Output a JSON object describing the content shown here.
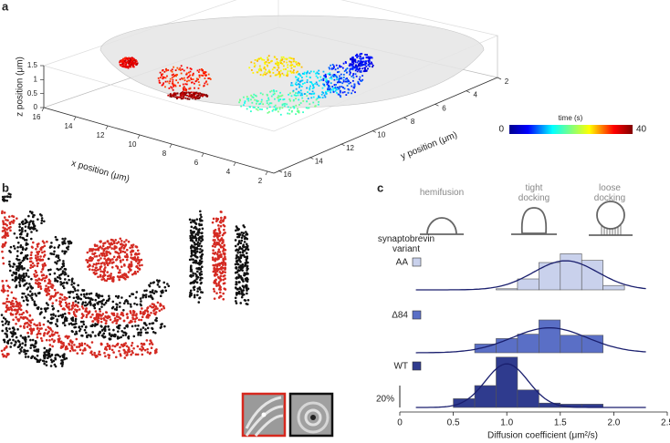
{
  "panel_a": {
    "label": "a",
    "z_label": "z position (μm)",
    "x_label": "x position (μm)",
    "y_label": "y position (μm)",
    "z_ticks": [
      0,
      0.5,
      1,
      1.5
    ],
    "x_ticks": [
      16,
      14,
      12,
      10,
      8,
      6,
      4,
      2
    ],
    "y_ticks": [
      2,
      4,
      6,
      8,
      10,
      12,
      14,
      16
    ],
    "colorbar": {
      "title": "time (s)",
      "min": 0,
      "max": 40
    }
  },
  "panel_b": {
    "label": "b"
  },
  "panel_c": {
    "label": "c",
    "schematics": [
      "hemifusion",
      "tight docking",
      "loose docking"
    ],
    "legend_title": "synaptobrevin variant"
  },
  "chart_data": {
    "type": "histogram",
    "x_label": "Diffusion coefficient (μm²/s)",
    "xlim": [
      0,
      2.5
    ],
    "xticks": [
      0,
      0.5,
      {
        "value": 1,
        "label": "1.0"
      },
      1.5,
      {
        "value": 2,
        "label": "2.0"
      },
      {
        "value": 2.5,
        "label": "2.5"
      }
    ],
    "scale_bar": {
      "value": 20,
      "label": "20%"
    },
    "series": [
      {
        "name": "AA",
        "color": "#c9d1ec",
        "bins": [
          0.9,
          1.1,
          1.3,
          1.5,
          1.7,
          1.9,
          2.1
        ],
        "values": [
          1,
          10,
          25,
          33,
          27,
          4
        ],
        "fit": {
          "mean": 1.55,
          "sd": 0.3
        }
      },
      {
        "name": "Δ84",
        "color": "#5a6fc6",
        "bins": [
          0.7,
          0.9,
          1.1,
          1.3,
          1.5,
          1.7,
          1.9
        ],
        "values": [
          8,
          13,
          17,
          30,
          16,
          16
        ],
        "fit": {
          "mean": 1.4,
          "sd": 0.35
        }
      },
      {
        "name": "WT",
        "color": "#2f3b8e",
        "bins": [
          0.5,
          0.7,
          0.9,
          1.1,
          1.3,
          1.5,
          1.7,
          1.9
        ],
        "values": [
          8,
          20,
          46,
          16,
          4,
          3,
          3
        ],
        "fit": {
          "mean": 1.0,
          "sd": 0.2
        }
      }
    ]
  }
}
